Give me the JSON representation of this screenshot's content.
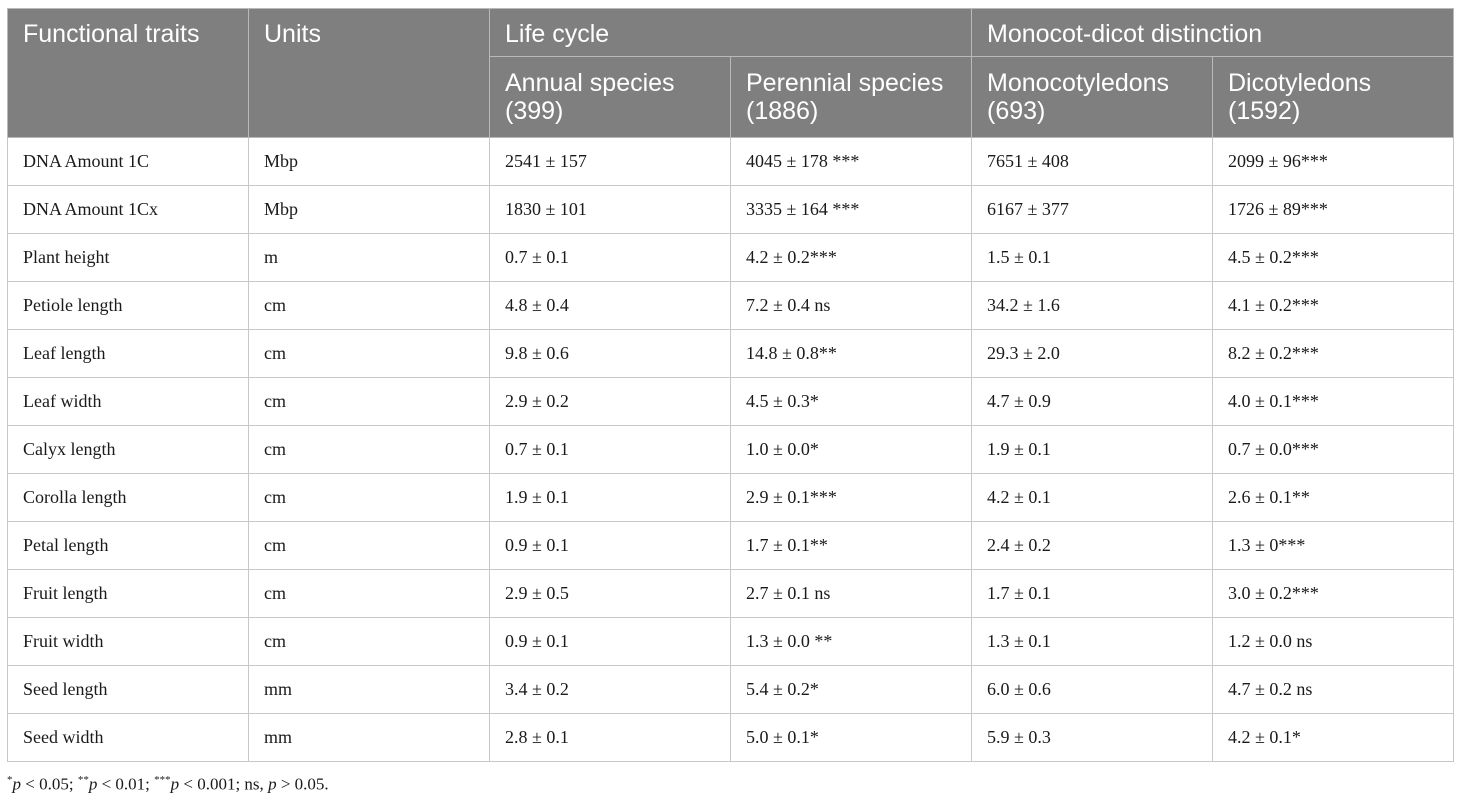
{
  "header": {
    "col_traits": "Functional traits",
    "col_units": "Units",
    "group_life_cycle": "Life cycle",
    "group_monocot": "Monocot-dicot distinction",
    "sub_annual": "Annual species (399)",
    "sub_perennial": "Perennial species (1886)",
    "sub_monocot": "Monocotyledons (693)",
    "sub_dicot": "Dicotyledons (1592)"
  },
  "rows": [
    {
      "trait": "DNA Amount 1C",
      "unit": "Mbp",
      "annual": "2541 ± 157",
      "perennial": "4045 ± 178 ***",
      "monocot": "7651 ± 408",
      "dicot": "2099 ± 96***"
    },
    {
      "trait": "DNA Amount 1Cx",
      "unit": "Mbp",
      "annual": "1830 ± 101",
      "perennial": "3335 ± 164 ***",
      "monocot": "6167 ± 377",
      "dicot": "1726 ± 89***"
    },
    {
      "trait": "Plant height",
      "unit": "m",
      "annual": "0.7 ± 0.1",
      "perennial": "4.2 ± 0.2***",
      "monocot": "1.5 ± 0.1",
      "dicot": "4.5 ± 0.2***"
    },
    {
      "trait": "Petiole length",
      "unit": "cm",
      "annual": "4.8 ± 0.4",
      "perennial": "7.2 ± 0.4 ns",
      "monocot": "34.2 ± 1.6",
      "dicot": "4.1 ± 0.2***"
    },
    {
      "trait": "Leaf length",
      "unit": "cm",
      "annual": "9.8 ± 0.6",
      "perennial": "14.8 ± 0.8**",
      "monocot": "29.3 ± 2.0",
      "dicot": "8.2 ± 0.2***"
    },
    {
      "trait": "Leaf width",
      "unit": "cm",
      "annual": "2.9 ± 0.2",
      "perennial": "4.5 ± 0.3*",
      "monocot": "4.7 ± 0.9",
      "dicot": "4.0 ± 0.1***"
    },
    {
      "trait": "Calyx length",
      "unit": "cm",
      "annual": "0.7 ± 0.1",
      "perennial": "1.0 ± 0.0*",
      "monocot": "1.9 ± 0.1",
      "dicot": "0.7 ± 0.0***"
    },
    {
      "trait": "Corolla length",
      "unit": "cm",
      "annual": "1.9 ± 0.1",
      "perennial": "2.9 ± 0.1***",
      "monocot": "4.2 ± 0.1",
      "dicot": "2.6 ± 0.1**"
    },
    {
      "trait": "Petal length",
      "unit": "cm",
      "annual": "0.9 ± 0.1",
      "perennial": "1.7 ± 0.1**",
      "monocot": "2.4 ± 0.2",
      "dicot": "1.3 ± 0***"
    },
    {
      "trait": "Fruit length",
      "unit": "cm",
      "annual": "2.9 ± 0.5",
      "perennial": "2.7 ± 0.1 ns",
      "monocot": "1.7 ± 0.1",
      "dicot": "3.0 ± 0.2***"
    },
    {
      "trait": "Fruit width",
      "unit": "cm",
      "annual": "0.9 ± 0.1",
      "perennial": "1.3 ± 0.0 **",
      "monocot": "1.3 ± 0.1",
      "dicot": "1.2 ± 0.0 ns"
    },
    {
      "trait": "Seed length",
      "unit": "mm",
      "annual": "3.4 ± 0.2",
      "perennial": "5.4 ± 0.2*",
      "monocot": "6.0 ± 0.6",
      "dicot": "4.7 ± 0.2 ns"
    },
    {
      "trait": "Seed width",
      "unit": "mm",
      "annual": "2.8 ± 0.1",
      "perennial": "5.0 ± 0.1*",
      "monocot": "5.9 ± 0.3",
      "dicot": "4.2 ± 0.1*"
    }
  ],
  "footnote": {
    "star1": "*",
    "p1": "p",
    "t1": " < 0.05; ",
    "star2": "**",
    "p2": "p",
    "t2": " < 0.01; ",
    "star3": "***",
    "p3": "p",
    "t3": " < 0.001; ns, ",
    "p4": "p",
    "t4": " > 0.05."
  }
}
